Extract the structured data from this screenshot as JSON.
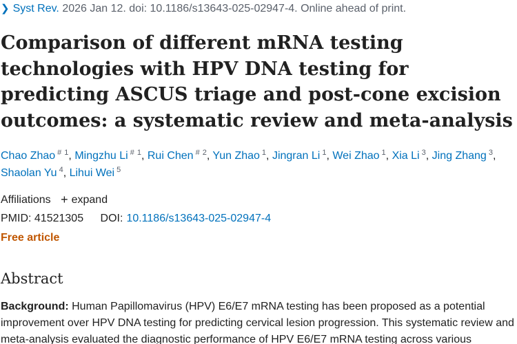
{
  "citation": {
    "journal": "Syst Rev.",
    "details": "2026 Jan 12. doi: 10.1186/s13643-025-02947-4. Online ahead of print."
  },
  "title": "Comparison of different mRNA testing technologies with HPV DNA testing for predicting ASCUS triage and post-cone excision outcomes: a systematic review and meta-analysis",
  "authors": [
    {
      "name": "Chao Zhao",
      "hash": "#",
      "sup": "1",
      "sep": ","
    },
    {
      "name": "Mingzhu Li",
      "hash": "#",
      "sup": "1",
      "sep": ","
    },
    {
      "name": "Rui Chen",
      "hash": "#",
      "sup": "2",
      "sep": ","
    },
    {
      "name": "Yun Zhao",
      "hash": "",
      "sup": "1",
      "sep": ","
    },
    {
      "name": "Jingran Li",
      "hash": "",
      "sup": "1",
      "sep": ","
    },
    {
      "name": "Wei Zhao",
      "hash": "",
      "sup": "1",
      "sep": ","
    },
    {
      "name": "Xia Li",
      "hash": "",
      "sup": "3",
      "sep": ","
    },
    {
      "name": "Jing Zhang",
      "hash": "",
      "sup": "3",
      "sep": ","
    },
    {
      "name": "Shaolan Yu",
      "hash": "",
      "sup": "4",
      "sep": ","
    },
    {
      "name": "Lihui Wei",
      "hash": "",
      "sup": "5",
      "sep": ""
    }
  ],
  "affiliations": {
    "label": "Affiliations",
    "expand_icon": "+",
    "expand_label": "expand"
  },
  "ids": {
    "pmid_label": "PMID:",
    "pmid": "41521305",
    "doi_label": "DOI:",
    "doi": "10.1186/s13643-025-02947-4"
  },
  "free_article": "Free article",
  "abstract": {
    "heading": "Abstract",
    "background_label": "Background:",
    "background_text": "Human Papillomavirus (HPV) E6/E7 mRNA testing has been proposed as a potential improvement over HPV DNA testing for predicting cervical lesion progression. This systematic review and meta-analysis evaluated the diagnostic performance of HPV E6/E7 mRNA testing across various"
  },
  "colors": {
    "link": "#0071bc",
    "free": "#c05600",
    "text": "#212121",
    "muted": "#5b616b"
  }
}
